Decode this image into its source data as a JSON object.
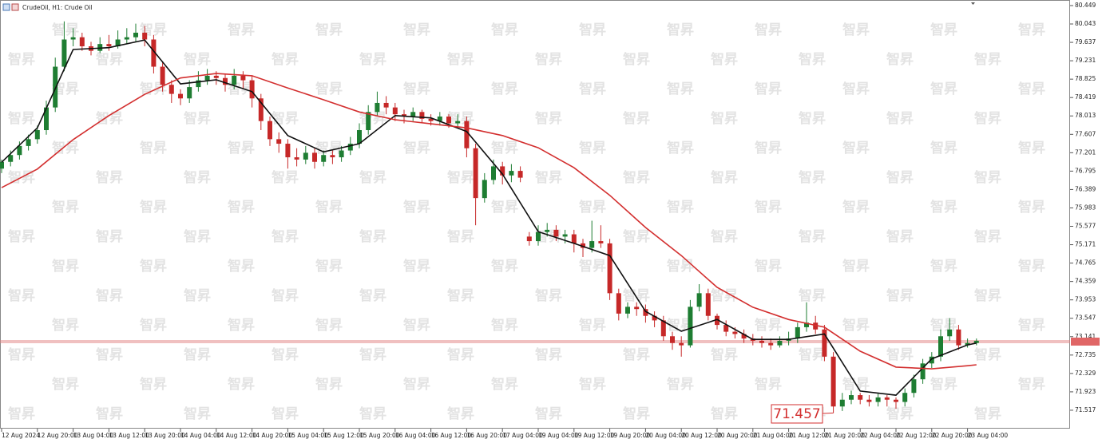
{
  "chart_data": {
    "type": "candlestick",
    "title": "CrudeOil, H1:  Crude Oil",
    "watermark": "智昇",
    "annotation": {
      "label": "71.457",
      "value": 71.457
    },
    "price_line": 73.032,
    "up_color": "#1e7d32",
    "down_color": "#c62828",
    "ylim": [
      71.111,
      80.572
    ],
    "yticks": [
      71.517,
      71.923,
      72.329,
      72.735,
      73.141,
      73.547,
      73.953,
      74.359,
      74.765,
      75.171,
      75.577,
      75.983,
      76.389,
      76.795,
      77.201,
      77.607,
      78.013,
      78.419,
      78.825,
      79.231,
      79.637,
      80.043,
      80.449
    ],
    "categories": [
      "12 Aug 2024",
      null,
      null,
      null,
      "12 Aug 20:00",
      null,
      null,
      null,
      "13 Aug 04:00",
      null,
      null,
      null,
      "13 Aug 12:00",
      null,
      null,
      null,
      "13 Aug 20:00",
      null,
      null,
      null,
      "14 Aug 04:00",
      null,
      null,
      null,
      "14 Aug 12:00",
      null,
      null,
      null,
      "14 Aug 20:00",
      null,
      null,
      null,
      "15 Aug 04:00",
      null,
      null,
      null,
      "15 Aug 12:00",
      null,
      null,
      null,
      "15 Aug 20:00",
      null,
      null,
      null,
      "16 Aug 04:00",
      null,
      null,
      null,
      "16 Aug 12:00",
      null,
      null,
      null,
      "16 Aug 20:00",
      null,
      null,
      null,
      "17 Aug 04:00",
      null,
      null,
      null,
      "19 Aug 04:00",
      null,
      null,
      null,
      "19 Aug 12:00",
      null,
      null,
      null,
      "19 Aug 20:00",
      null,
      null,
      null,
      "20 Aug 04:00",
      null,
      null,
      null,
      "20 Aug 12:00",
      null,
      null,
      null,
      "20 Aug 20:00",
      null,
      null,
      null,
      "21 Aug 04:00",
      null,
      null,
      null,
      "21 Aug 12:00",
      null,
      null,
      null,
      "21 Aug 20:00",
      null,
      null,
      null,
      "22 Aug 04:00",
      null,
      null,
      null,
      "22 Aug 12:00",
      null,
      null,
      null,
      "22 Aug 20:00",
      null,
      null,
      null,
      "23 Aug 04:00",
      null
    ],
    "ohlc": [
      [
        76.85,
        77.05,
        76.75,
        77.0
      ],
      [
        77.0,
        77.25,
        76.9,
        77.15
      ],
      [
        77.15,
        77.45,
        77.05,
        77.35
      ],
      [
        77.35,
        77.6,
        77.25,
        77.5
      ],
      [
        77.5,
        77.8,
        77.4,
        77.7
      ],
      [
        77.7,
        78.35,
        77.6,
        78.2
      ],
      [
        78.2,
        79.3,
        78.1,
        79.1
      ],
      [
        79.1,
        80.1,
        79.0,
        79.7
      ],
      [
        79.7,
        79.95,
        79.55,
        79.75
      ],
      [
        79.75,
        79.85,
        79.45,
        79.55
      ],
      [
        79.55,
        79.65,
        79.35,
        79.45
      ],
      [
        79.45,
        79.75,
        79.4,
        79.6
      ],
      [
        79.6,
        79.8,
        79.45,
        79.55
      ],
      [
        79.55,
        79.9,
        79.5,
        79.7
      ],
      [
        79.7,
        79.95,
        79.6,
        79.75
      ],
      [
        79.75,
        80.05,
        79.65,
        79.85
      ],
      [
        79.85,
        80.0,
        79.55,
        79.7
      ],
      [
        79.7,
        79.8,
        78.95,
        79.1
      ],
      [
        79.1,
        79.2,
        78.55,
        78.7
      ],
      [
        78.7,
        78.8,
        78.3,
        78.5
      ],
      [
        78.5,
        78.6,
        78.25,
        78.4
      ],
      [
        78.4,
        78.8,
        78.3,
        78.65
      ],
      [
        78.65,
        79.0,
        78.55,
        78.8
      ],
      [
        78.8,
        79.05,
        78.7,
        78.9
      ],
      [
        78.9,
        79.0,
        78.7,
        78.85
      ],
      [
        78.85,
        78.95,
        78.55,
        78.7
      ],
      [
        78.7,
        79.05,
        78.6,
        78.9
      ],
      [
        78.9,
        79.0,
        78.6,
        78.8
      ],
      [
        78.8,
        78.9,
        78.2,
        78.4
      ],
      [
        78.4,
        78.5,
        77.7,
        77.9
      ],
      [
        77.9,
        78.0,
        77.35,
        77.5
      ],
      [
        77.5,
        77.65,
        77.2,
        77.4
      ],
      [
        77.4,
        77.5,
        76.85,
        77.1
      ],
      [
        77.1,
        77.3,
        76.9,
        77.05
      ],
      [
        77.05,
        77.35,
        76.95,
        77.2
      ],
      [
        77.2,
        77.3,
        76.85,
        77.0
      ],
      [
        77.0,
        77.25,
        76.9,
        77.15
      ],
      [
        77.15,
        77.25,
        76.95,
        77.1
      ],
      [
        77.1,
        77.35,
        77.0,
        77.25
      ],
      [
        77.25,
        77.55,
        77.15,
        77.4
      ],
      [
        77.4,
        77.85,
        77.3,
        77.7
      ],
      [
        77.7,
        78.25,
        77.6,
        78.1
      ],
      [
        78.1,
        78.55,
        78.0,
        78.3
      ],
      [
        78.3,
        78.45,
        78.05,
        78.2
      ],
      [
        78.2,
        78.3,
        77.9,
        78.05
      ],
      [
        78.05,
        78.15,
        77.85,
        78.0
      ],
      [
        78.0,
        78.2,
        77.9,
        78.1
      ],
      [
        78.1,
        78.15,
        77.85,
        77.95
      ],
      [
        77.95,
        78.05,
        77.8,
        77.9
      ],
      [
        77.9,
        78.1,
        77.8,
        78.0
      ],
      [
        78.0,
        78.05,
        77.75,
        77.85
      ],
      [
        77.85,
        78.05,
        77.75,
        77.9
      ],
      [
        77.9,
        78.0,
        77.1,
        77.3
      ],
      [
        77.3,
        77.4,
        75.6,
        76.2
      ],
      [
        76.2,
        76.75,
        76.1,
        76.6
      ],
      [
        76.6,
        77.05,
        76.5,
        76.9
      ],
      [
        76.9,
        77.0,
        76.5,
        76.7
      ],
      [
        76.7,
        76.95,
        76.55,
        76.8
      ],
      [
        76.8,
        76.9,
        76.55,
        76.65
      ],
      [
        75.35,
        75.45,
        75.15,
        75.25
      ],
      [
        75.25,
        75.6,
        75.15,
        75.45
      ],
      [
        75.45,
        75.65,
        75.35,
        75.5
      ],
      [
        75.5,
        75.6,
        75.25,
        75.35
      ],
      [
        75.35,
        75.5,
        75.2,
        75.4
      ],
      [
        75.4,
        75.5,
        75.0,
        75.2
      ],
      [
        75.2,
        75.3,
        74.9,
        75.1
      ],
      [
        75.1,
        75.7,
        75.0,
        75.25
      ],
      [
        75.25,
        75.6,
        75.1,
        75.2
      ],
      [
        75.2,
        75.3,
        73.95,
        74.1
      ],
      [
        74.1,
        74.2,
        73.5,
        73.65
      ],
      [
        73.65,
        73.9,
        73.55,
        73.8
      ],
      [
        73.8,
        73.9,
        73.6,
        73.75
      ],
      [
        73.75,
        73.85,
        73.45,
        73.6
      ],
      [
        73.6,
        73.7,
        73.35,
        73.5
      ],
      [
        73.5,
        73.6,
        73.05,
        73.15
      ],
      [
        73.15,
        73.25,
        72.85,
        73.0
      ],
      [
        73.0,
        73.15,
        72.7,
        72.95
      ],
      [
        72.95,
        73.95,
        72.9,
        73.8
      ],
      [
        73.8,
        74.3,
        73.7,
        74.1
      ],
      [
        74.1,
        74.2,
        73.5,
        73.6
      ],
      [
        73.6,
        73.65,
        73.3,
        73.4
      ],
      [
        73.4,
        73.5,
        73.15,
        73.25
      ],
      [
        73.25,
        73.35,
        73.1,
        73.2
      ],
      [
        73.2,
        73.3,
        73.0,
        73.1
      ],
      [
        73.1,
        73.2,
        72.95,
        73.05
      ],
      [
        73.05,
        73.15,
        72.9,
        73.0
      ],
      [
        73.0,
        73.1,
        72.85,
        72.95
      ],
      [
        72.95,
        73.15,
        72.9,
        73.05
      ],
      [
        73.05,
        73.25,
        72.95,
        73.1
      ],
      [
        73.1,
        73.45,
        73.0,
        73.35
      ],
      [
        73.35,
        73.9,
        73.25,
        73.45
      ],
      [
        73.45,
        73.6,
        73.2,
        73.3
      ],
      [
        73.3,
        73.4,
        72.6,
        72.7
      ],
      [
        72.7,
        72.8,
        71.457,
        71.6
      ],
      [
        71.6,
        71.9,
        71.5,
        71.75
      ],
      [
        71.75,
        71.95,
        71.65,
        71.85
      ],
      [
        71.85,
        71.9,
        71.65,
        71.75
      ],
      [
        71.75,
        71.85,
        71.6,
        71.7
      ],
      [
        71.7,
        71.9,
        71.6,
        71.8
      ],
      [
        71.8,
        71.85,
        71.6,
        71.75
      ],
      [
        71.75,
        71.8,
        71.55,
        71.7
      ],
      [
        71.7,
        72.0,
        71.6,
        71.9
      ],
      [
        71.9,
        72.3,
        71.8,
        72.2
      ],
      [
        72.2,
        72.65,
        72.1,
        72.55
      ],
      [
        72.55,
        72.8,
        72.45,
        72.7
      ],
      [
        72.7,
        73.3,
        72.6,
        73.15
      ],
      [
        73.15,
        73.55,
        73.05,
        73.3
      ],
      [
        73.3,
        73.4,
        72.85,
        72.95
      ],
      [
        72.95,
        73.1,
        72.9,
        73.0
      ],
      [
        73.0,
        73.1,
        72.95,
        73.05
      ]
    ],
    "series": [
      {
        "color": "#111111",
        "x": [
          0,
          4,
          8,
          12,
          16,
          20,
          24,
          28,
          32,
          36,
          40,
          44,
          48,
          52,
          56,
          60,
          64,
          68,
          72,
          76,
          80,
          84,
          88,
          92,
          96,
          100,
          104,
          108,
          109
        ],
        "values": [
          76.99,
          77.75,
          79.48,
          79.52,
          79.69,
          78.72,
          78.81,
          78.55,
          77.58,
          77.22,
          77.4,
          78.02,
          77.97,
          77.67,
          76.73,
          75.46,
          75.2,
          74.93,
          73.7,
          73.26,
          73.52,
          73.08,
          73.08,
          73.2,
          71.94,
          71.85,
          72.65,
          72.96,
          73.0
        ]
      },
      {
        "color": "#d32f2f",
        "x": [
          0,
          4,
          8,
          12,
          16,
          20,
          24,
          28,
          32,
          36,
          40,
          44,
          48,
          52,
          56,
          60,
          64,
          68,
          72,
          76,
          80,
          84,
          88,
          92,
          96,
          100,
          104,
          108,
          109
        ],
        "values": [
          76.43,
          76.84,
          77.49,
          78.02,
          78.49,
          78.85,
          78.95,
          78.9,
          78.63,
          78.37,
          78.1,
          77.93,
          77.84,
          77.75,
          77.58,
          77.31,
          76.87,
          76.26,
          75.55,
          74.93,
          74.23,
          73.79,
          73.52,
          73.35,
          72.82,
          72.47,
          72.43,
          72.5,
          72.52
        ]
      }
    ]
  }
}
